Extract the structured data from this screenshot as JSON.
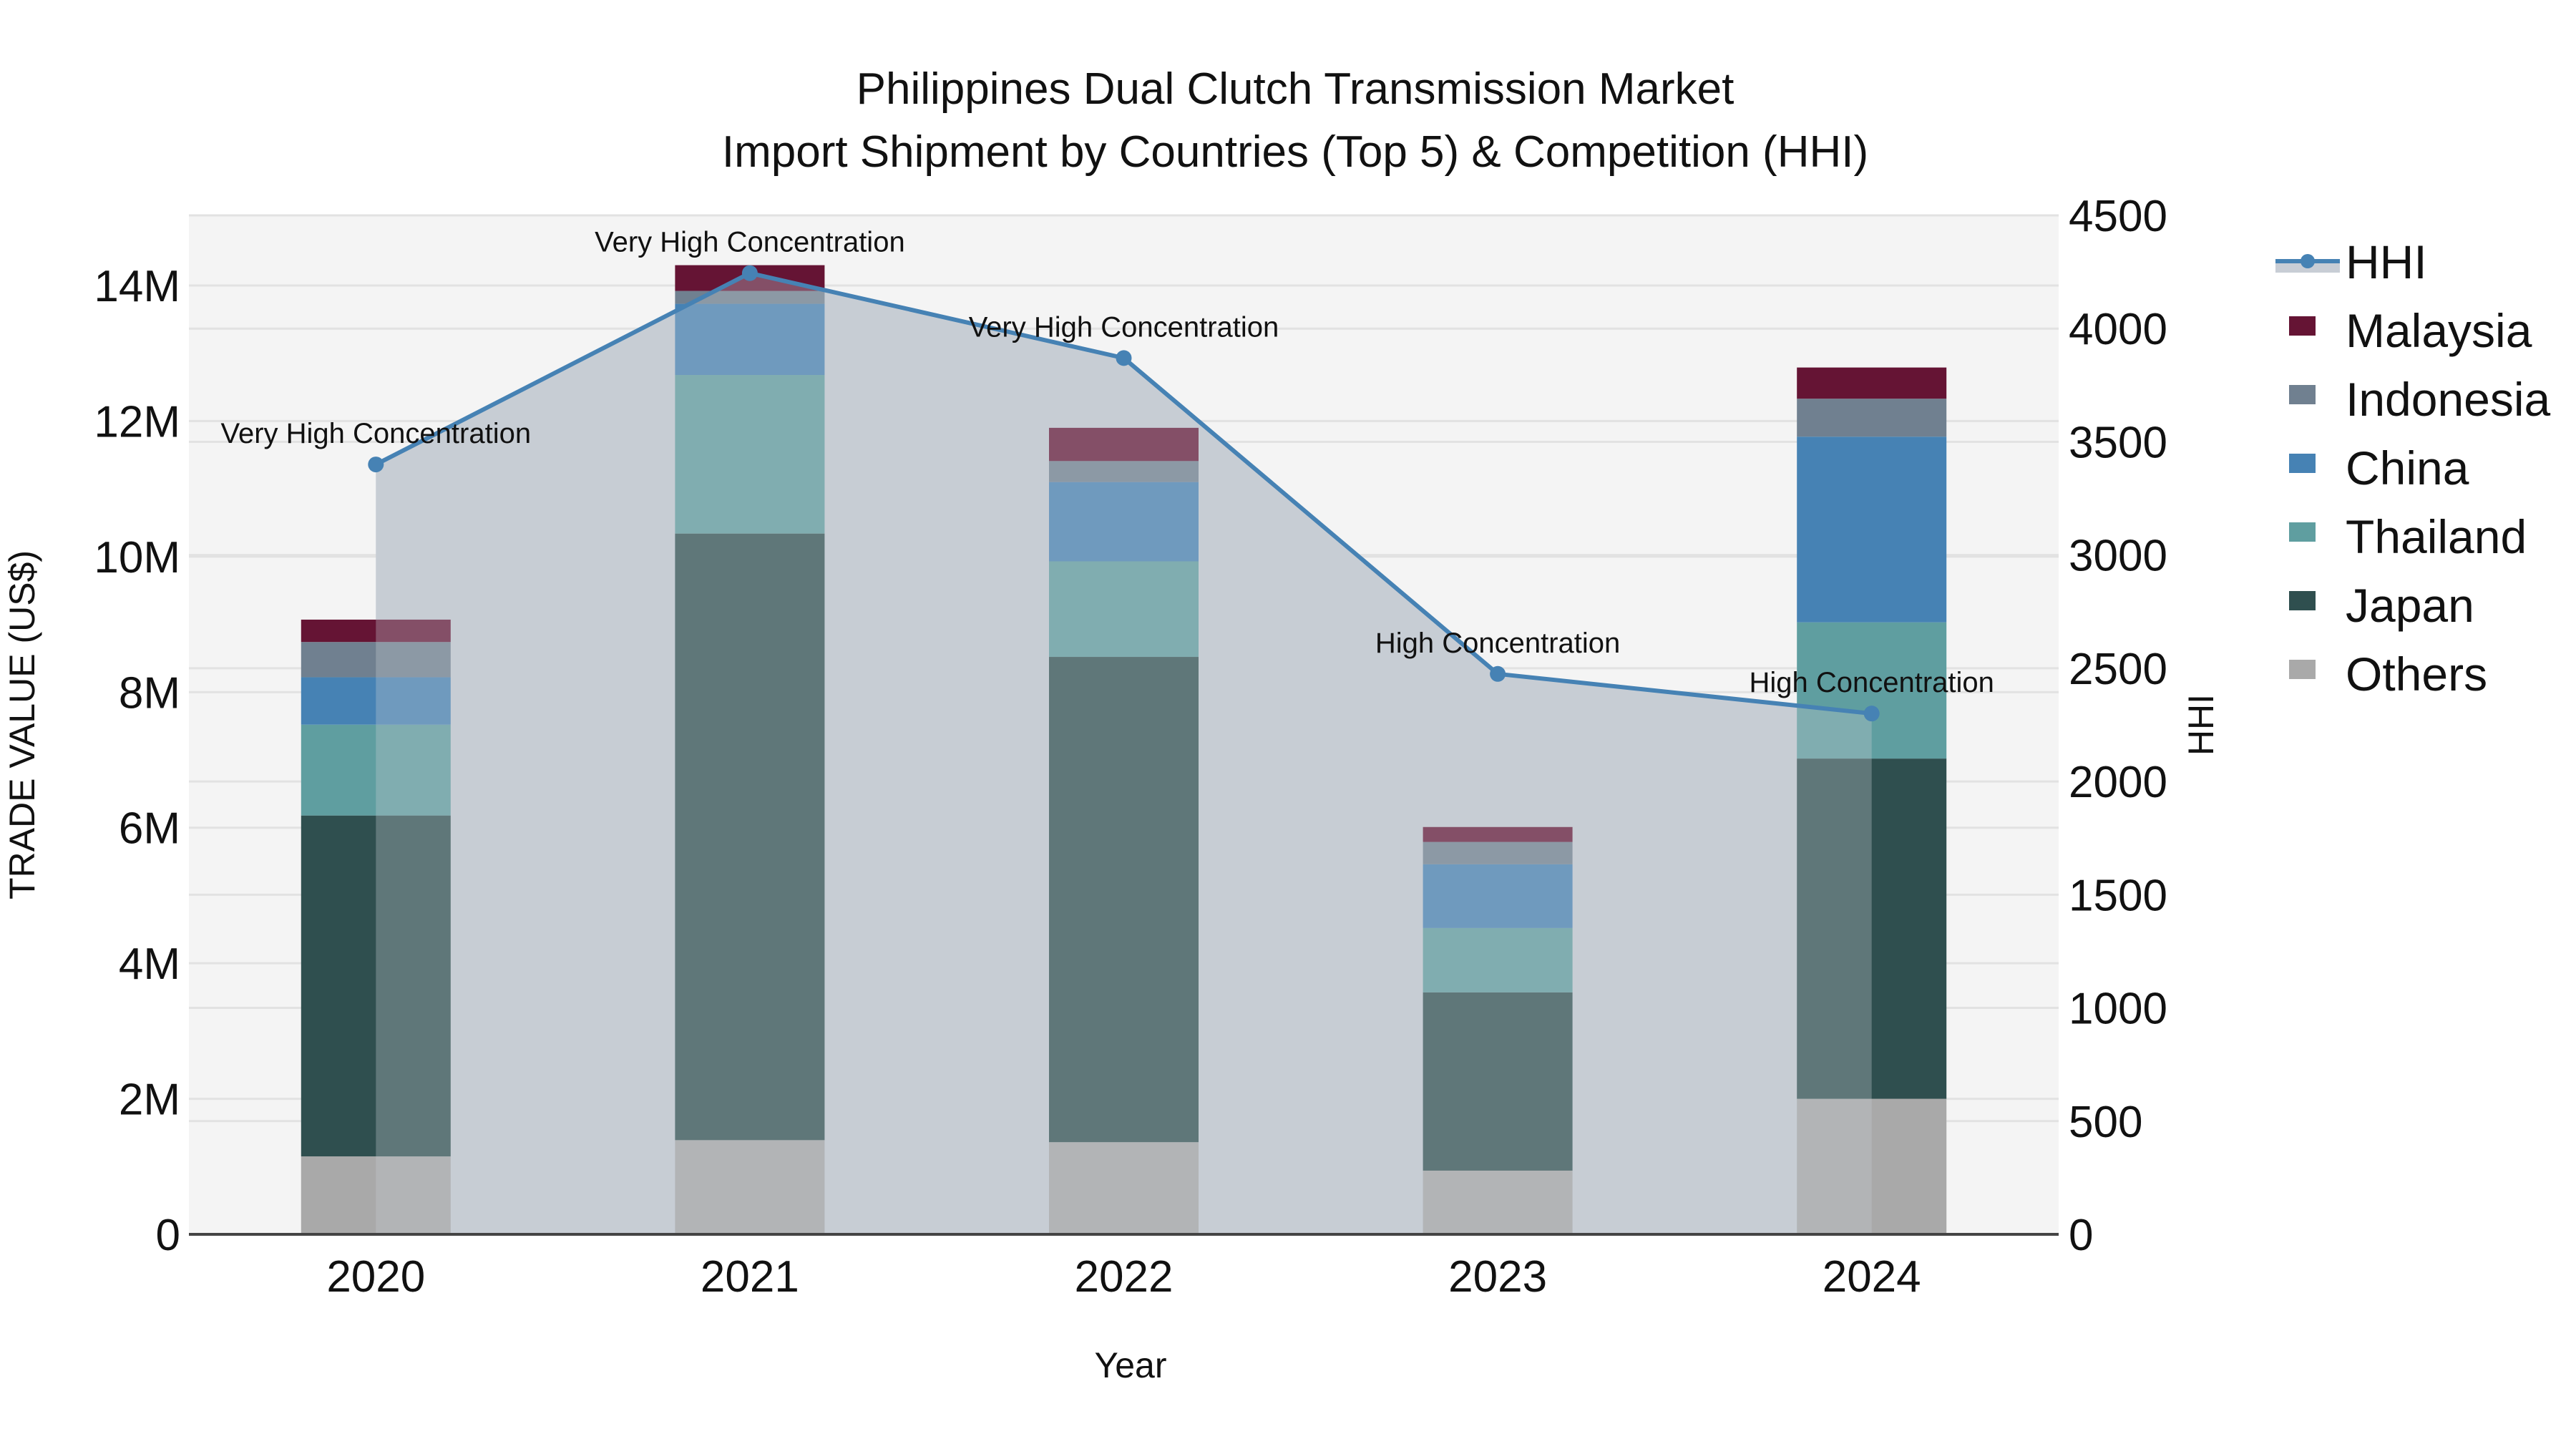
{
  "chart_data": {
    "type": "bar",
    "subtype": "stacked bar with secondary-axis line + area",
    "title": "Philippines Dual Clutch Transmission Market",
    "subtitle": "Import Shipment by Countries (Top 5) & Competition (HHI)",
    "xlabel": "Year",
    "ylabel": "TRADE VALUE (US$)",
    "y2label": "HHI",
    "categories": [
      "2020",
      "2021",
      "2022",
      "2023",
      "2024"
    ],
    "ylim": [
      0,
      15000000
    ],
    "y_ticks": [
      0,
      2000000,
      4000000,
      6000000,
      8000000,
      10000000,
      12000000,
      14000000
    ],
    "y_tick_labels": [
      "0",
      "2M",
      "4M",
      "6M",
      "8M",
      "10M",
      "12M",
      "14M"
    ],
    "y2lim": [
      0,
      4500
    ],
    "y2_ticks": [
      0,
      500,
      1000,
      1500,
      2000,
      2500,
      3000,
      3500,
      4000,
      4500
    ],
    "y2_tick_labels": [
      "0",
      "500",
      "1000",
      "1500",
      "2000",
      "2500",
      "3000",
      "3500",
      "4000",
      "4500"
    ],
    "series": [
      {
        "name": "Others",
        "color": "#a9a9a9",
        "values": [
          1150000,
          1390000,
          1360000,
          940000,
          2000000
        ]
      },
      {
        "name": "Japan",
        "color": "#2f4f4f",
        "values": [
          5030000,
          8950000,
          7160000,
          2630000,
          5020000
        ]
      },
      {
        "name": "Thailand",
        "color": "#5f9ea0",
        "values": [
          1340000,
          2340000,
          1410000,
          950000,
          2010000
        ]
      },
      {
        "name": "China",
        "color": "#4682b4",
        "values": [
          700000,
          1050000,
          1170000,
          940000,
          2740000
        ]
      },
      {
        "name": "Indonesia",
        "color": "#708090",
        "values": [
          520000,
          190000,
          310000,
          330000,
          560000
        ]
      },
      {
        "name": "Malaysia",
        "color": "#651434",
        "values": [
          330000,
          380000,
          490000,
          220000,
          460000
        ]
      }
    ],
    "line_series": {
      "name": "HHI",
      "axis": "y2",
      "color": "#4682b4",
      "fill_color": "#c8cdd5",
      "values": [
        3400,
        4245,
        3870,
        2475,
        2300
      ],
      "annotations": [
        "Very High Concentration",
        "Very High Concentration",
        "Very High Concentration",
        "High Concentration",
        "High Concentration"
      ]
    },
    "legend": {
      "position": "right",
      "entries": [
        "HHI",
        "Malaysia",
        "Indonesia",
        "China",
        "Thailand",
        "Japan",
        "Others"
      ]
    },
    "grid": true,
    "plot_background": "#f4f4f4"
  }
}
